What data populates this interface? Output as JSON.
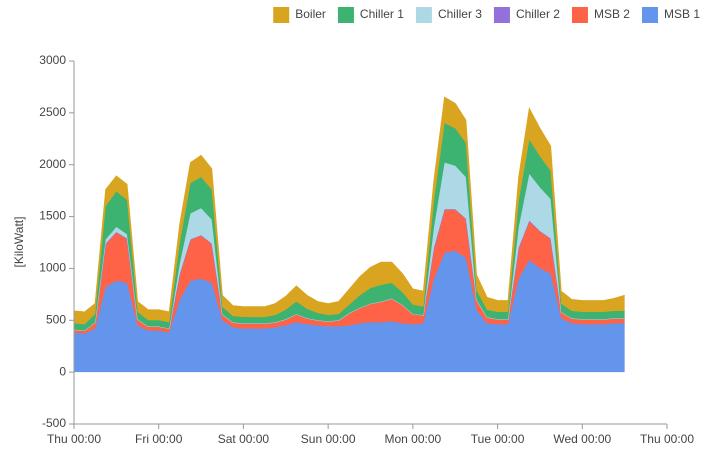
{
  "chart_data": {
    "type": "stacked-area",
    "y_label": "[KiloWatt]",
    "legend": "top-right",
    "x": [
      0,
      3,
      6,
      9,
      12,
      15,
      18,
      21,
      24,
      27,
      30,
      33,
      36,
      39,
      42,
      45,
      48,
      51,
      54,
      57,
      60,
      63,
      66,
      69,
      72,
      75,
      78,
      81,
      84,
      87,
      90,
      93,
      96,
      99,
      102,
      105,
      108,
      111,
      114,
      117,
      120,
      123,
      126,
      129,
      132,
      135,
      138,
      141,
      144,
      147,
      150,
      153,
      156
    ],
    "xlim": [
      0,
      168
    ],
    "xticks": [
      {
        "value": 0,
        "label": "Thu 00:00"
      },
      {
        "value": 24,
        "label": "Fri 00:00"
      },
      {
        "value": 48,
        "label": "Sat 00:00"
      },
      {
        "value": 72,
        "label": "Sun 00:00"
      },
      {
        "value": 96,
        "label": "Mon 00:00"
      },
      {
        "value": 120,
        "label": "Tue 00:00"
      },
      {
        "value": 144,
        "label": "Wed 00:00"
      },
      {
        "value": 168,
        "label": "Thu 00:00"
      }
    ],
    "ylim": [
      -500,
      3000
    ],
    "yticks": [
      -500,
      0,
      500,
      1000,
      1500,
      2000,
      2500,
      3000
    ],
    "series": [
      {
        "name": "Boiler",
        "color": "#d9a520",
        "values": [
          120,
          120,
          100,
          160,
          150,
          150,
          100,
          100,
          100,
          100,
          180,
          200,
          210,
          200,
          110,
          100,
          100,
          100,
          100,
          110,
          130,
          150,
          130,
          110,
          110,
          120,
          150,
          180,
          200,
          220,
          200,
          180,
          150,
          150,
          200,
          250,
          240,
          220,
          150,
          120,
          110,
          110,
          230,
          300,
          270,
          240,
          120,
          110,
          110,
          110,
          110,
          120,
          150
        ]
      },
      {
        "name": "Chiller 1",
        "color": "#3cb371",
        "values": [
          60,
          60,
          80,
          320,
          340,
          330,
          70,
          60,
          60,
          60,
          200,
          290,
          300,
          290,
          70,
          60,
          60,
          60,
          60,
          70,
          90,
          120,
          90,
          70,
          60,
          60,
          80,
          120,
          150,
          160,
          150,
          120,
          90,
          80,
          250,
          380,
          360,
          330,
          90,
          70,
          70,
          70,
          250,
          330,
          300,
          270,
          80,
          70,
          70,
          70,
          70,
          70,
          70
        ]
      },
      {
        "name": "Chiller 3",
        "color": "#add8e6",
        "values": [
          0,
          0,
          0,
          40,
          50,
          40,
          0,
          0,
          0,
          0,
          100,
          250,
          260,
          230,
          0,
          0,
          0,
          0,
          0,
          0,
          0,
          0,
          0,
          0,
          0,
          0,
          0,
          0,
          0,
          0,
          0,
          0,
          0,
          0,
          200,
          450,
          420,
          400,
          0,
          0,
          0,
          0,
          200,
          450,
          420,
          380,
          0,
          0,
          0,
          0,
          0,
          0,
          0
        ]
      },
      {
        "name": "Chiller 2",
        "color": "#9370db",
        "values": [
          0,
          0,
          0,
          0,
          0,
          0,
          0,
          0,
          0,
          0,
          0,
          0,
          0,
          0,
          0,
          0,
          0,
          0,
          0,
          0,
          0,
          0,
          0,
          0,
          0,
          0,
          0,
          0,
          0,
          0,
          0,
          0,
          0,
          0,
          0,
          0,
          0,
          0,
          0,
          0,
          0,
          0,
          0,
          0,
          0,
          0,
          0,
          0,
          0,
          0,
          0,
          0,
          0
        ]
      },
      {
        "name": "MSB 2",
        "color": "#ff6347",
        "values": [
          30,
          30,
          60,
          420,
          470,
          430,
          60,
          40,
          40,
          40,
          250,
          400,
          420,
          380,
          60,
          50,
          50,
          50,
          50,
          50,
          60,
          80,
          60,
          50,
          50,
          60,
          120,
          150,
          180,
          200,
          220,
          180,
          100,
          80,
          300,
          420,
          400,
          380,
          100,
          60,
          50,
          50,
          300,
          380,
          360,
          340,
          60,
          50,
          50,
          50,
          50,
          50,
          50
        ]
      },
      {
        "name": "MSB 1",
        "color": "#6495ed",
        "values": [
          380,
          370,
          420,
          820,
          880,
          860,
          450,
          400,
          400,
          380,
          700,
          880,
          900,
          860,
          500,
          430,
          420,
          420,
          420,
          430,
          450,
          480,
          460,
          450,
          440,
          440,
          450,
          470,
          480,
          480,
          490,
          470,
          460,
          470,
          900,
          1150,
          1170,
          1100,
          600,
          470,
          460,
          460,
          900,
          1080,
          1000,
          950,
          520,
          470,
          460,
          460,
          460,
          470,
          470
        ]
      }
    ]
  }
}
